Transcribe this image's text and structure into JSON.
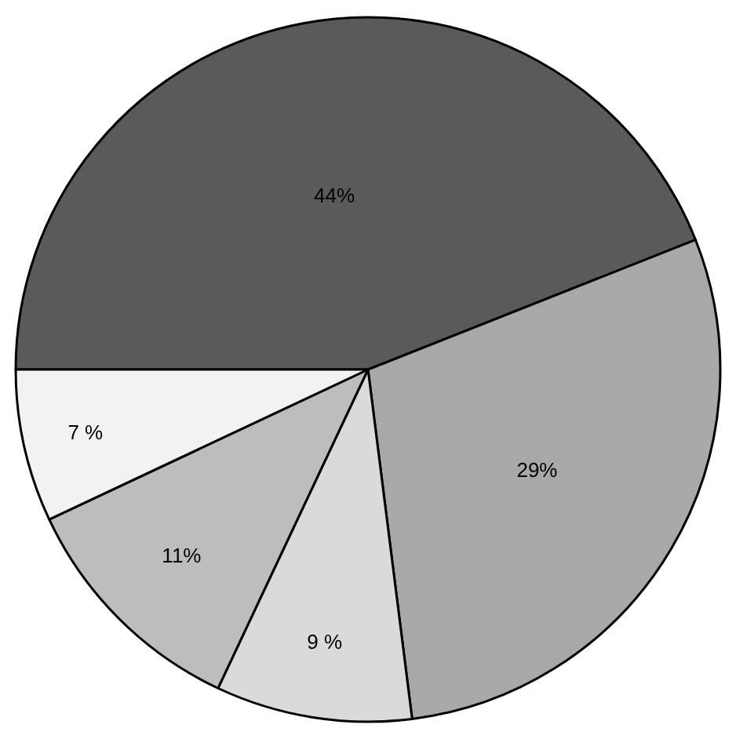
{
  "chart_data": {
    "type": "pie",
    "categories": [
      null,
      null,
      null,
      null,
      null
    ],
    "values": [
      44,
      29,
      9,
      11,
      7
    ],
    "colors": [
      "#5a5a5a",
      "#a8a8a8",
      "#dadada",
      "#bdbdbd",
      "#f2f2f2"
    ],
    "value_labels": [
      "44%",
      "29%",
      "9 %",
      "11%",
      "7 %"
    ],
    "legend": false
  }
}
